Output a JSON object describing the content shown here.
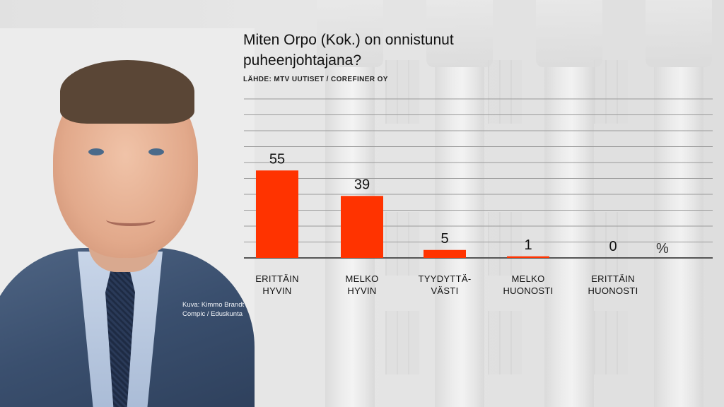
{
  "title": "Miten Orpo (Kok.) on onnistunut puheenjohtajana?",
  "source": "LÄHDE: MTV UUTISET / COREFINER OY",
  "photo_credit": [
    "Kuva: Kimmo Brandt",
    "Compic / Eduskunta"
  ],
  "chart_data": {
    "type": "bar",
    "title": "Miten Orpo (Kok.) on onnistunut puheenjohtajana?",
    "categories": [
      [
        "ERITTÄIN",
        "HYVIN"
      ],
      [
        "MELKO",
        "HYVIN"
      ],
      [
        "TYYDYTTÄ-",
        "VÄSTI"
      ],
      [
        "MELKO",
        "HUONOSTI"
      ],
      [
        "ERITTÄIN",
        "HUONOSTI"
      ]
    ],
    "values": [
      55,
      39,
      5,
      1,
      0
    ],
    "data_labels": [
      "55",
      "39",
      "5",
      "1",
      "0"
    ],
    "unit": "%",
    "ylim": [
      0,
      100
    ],
    "grid": true,
    "bar_color": "#ff3300"
  }
}
